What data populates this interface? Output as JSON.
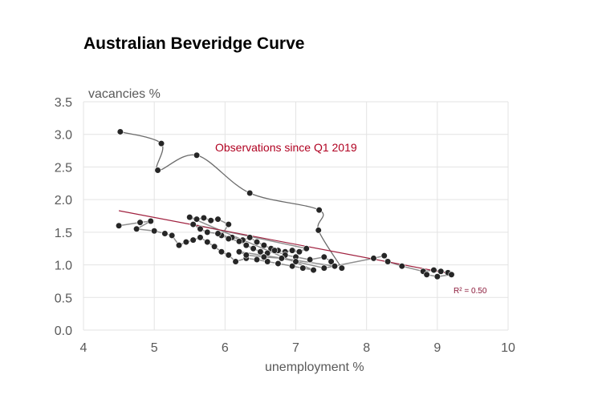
{
  "chart_data": {
    "type": "scatter",
    "title": "Australian Beveridge Curve",
    "xlabel": "unemployment %",
    "ylabel": "vacancies %",
    "xlim": [
      4,
      10
    ],
    "ylim": [
      0,
      3.5
    ],
    "x_ticks": [
      "4",
      "5",
      "6",
      "7",
      "8",
      "9",
      "10"
    ],
    "y_ticks": [
      "0.0",
      "0.5",
      "1.0",
      "1.5",
      "2.0",
      "2.5",
      "3.0",
      "3.5"
    ],
    "grid": true,
    "annotation": "Observations since Q1 2019",
    "r_squared_label": "R² = 0.50",
    "trendline": {
      "x": [
        4.5,
        9.2
      ],
      "y": [
        1.83,
        0.86
      ]
    },
    "historical_points": [
      [
        4.5,
        1.6
      ],
      [
        4.8,
        1.65
      ],
      [
        4.95,
        1.67
      ],
      [
        4.75,
        1.55
      ],
      [
        5.0,
        1.52
      ],
      [
        5.15,
        1.48
      ],
      [
        5.25,
        1.45
      ],
      [
        5.35,
        1.3
      ],
      [
        5.45,
        1.35
      ],
      [
        5.55,
        1.38
      ],
      [
        5.65,
        1.42
      ],
      [
        5.75,
        1.35
      ],
      [
        5.85,
        1.28
      ],
      [
        5.95,
        1.2
      ],
      [
        6.05,
        1.15
      ],
      [
        6.15,
        1.05
      ],
      [
        6.3,
        1.1
      ],
      [
        6.45,
        1.08
      ],
      [
        6.6,
        1.05
      ],
      [
        6.75,
        1.02
      ],
      [
        6.95,
        0.98
      ],
      [
        7.1,
        0.95
      ],
      [
        7.25,
        0.92
      ],
      [
        5.5,
        1.73
      ],
      [
        5.6,
        1.7
      ],
      [
        5.7,
        1.72
      ],
      [
        5.8,
        1.68
      ],
      [
        5.9,
        1.7
      ],
      [
        6.05,
        1.62
      ],
      [
        5.95,
        1.45
      ],
      [
        6.1,
        1.42
      ],
      [
        6.25,
        1.38
      ],
      [
        6.35,
        1.42
      ],
      [
        6.45,
        1.35
      ],
      [
        6.55,
        1.3
      ],
      [
        6.65,
        1.25
      ],
      [
        6.75,
        1.22
      ],
      [
        6.85,
        1.2
      ],
      [
        6.95,
        1.22
      ],
      [
        7.05,
        1.2
      ],
      [
        7.15,
        1.25
      ],
      [
        5.55,
        1.62
      ],
      [
        5.65,
        1.55
      ],
      [
        5.75,
        1.5
      ],
      [
        5.9,
        1.48
      ],
      [
        6.05,
        1.4
      ],
      [
        6.2,
        1.36
      ],
      [
        6.3,
        1.3
      ],
      [
        6.4,
        1.25
      ],
      [
        6.5,
        1.2
      ],
      [
        6.6,
        1.18
      ],
      [
        6.7,
        1.22
      ],
      [
        6.85,
        1.15
      ],
      [
        7.0,
        1.12
      ],
      [
        7.2,
        1.08
      ],
      [
        7.4,
        1.12
      ],
      [
        7.5,
        1.05
      ],
      [
        7.55,
        0.98
      ],
      [
        6.2,
        1.2
      ],
      [
        6.3,
        1.15
      ],
      [
        6.55,
        1.12
      ],
      [
        6.8,
        1.1
      ],
      [
        7.0,
        1.05
      ],
      [
        7.4,
        0.95
      ],
      [
        8.1,
        1.1
      ],
      [
        8.25,
        1.14
      ],
      [
        8.3,
        1.05
      ],
      [
        8.5,
        0.98
      ],
      [
        8.8,
        0.9
      ],
      [
        8.95,
        0.92
      ],
      [
        9.05,
        0.9
      ],
      [
        9.15,
        0.88
      ],
      [
        9.2,
        0.85
      ],
      [
        9.0,
        0.82
      ],
      [
        8.85,
        0.85
      ]
    ],
    "recent_series": {
      "x": [
        4.52,
        5.1,
        5.05,
        5.6,
        6.35,
        7.33,
        7.32,
        7.65
      ],
      "y": [
        3.04,
        2.86,
        2.45,
        2.68,
        2.1,
        1.84,
        1.53,
        0.95
      ]
    }
  }
}
